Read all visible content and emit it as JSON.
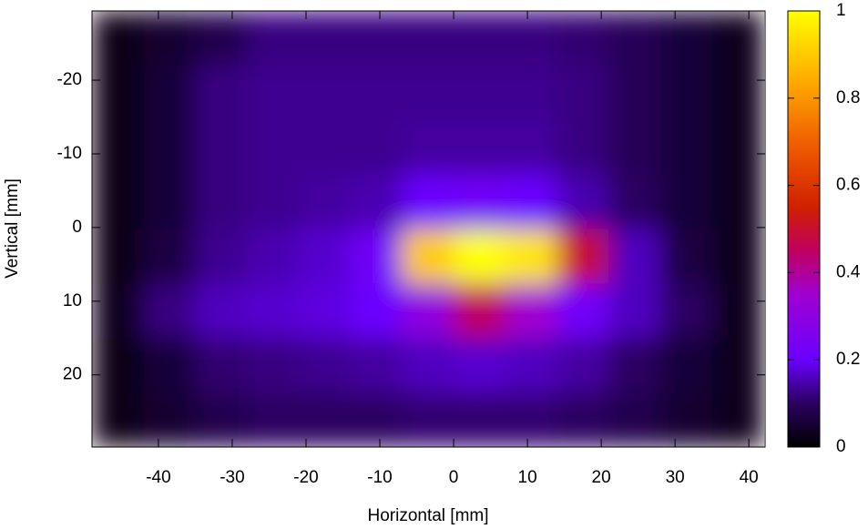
{
  "chart_data": {
    "type": "heatmap",
    "xlabel": "Horizontal [mm]",
    "ylabel": "Vertical [mm]",
    "x": [
      -49,
      -42,
      -35,
      -28,
      -21,
      -14,
      -7,
      0,
      7,
      14,
      21,
      28,
      35,
      42
    ],
    "y": [
      -29.4,
      -22,
      -14.6,
      -7.2,
      0.2,
      7.6,
      15,
      22.4,
      29.8
    ],
    "z": [
      [
        0.02,
        0.05,
        0.08,
        0.12,
        0.12,
        0.12,
        0.12,
        0.12,
        0.12,
        0.11,
        0.09,
        0.06,
        0.03
      ],
      [
        0.02,
        0.06,
        0.12,
        0.13,
        0.13,
        0.13,
        0.13,
        0.13,
        0.13,
        0.12,
        0.09,
        0.06,
        0.03
      ],
      [
        0.02,
        0.06,
        0.12,
        0.13,
        0.13,
        0.13,
        0.14,
        0.14,
        0.14,
        0.12,
        0.09,
        0.06,
        0.03
      ],
      [
        0.02,
        0.06,
        0.12,
        0.13,
        0.14,
        0.15,
        0.2,
        0.22,
        0.2,
        0.15,
        0.1,
        0.06,
        0.03
      ],
      [
        0.02,
        0.07,
        0.13,
        0.15,
        0.17,
        0.22,
        0.9,
        1,
        0.95,
        0.5,
        0.16,
        0.07,
        0.03
      ],
      [
        0.03,
        0.12,
        0.16,
        0.17,
        0.18,
        0.2,
        0.3,
        0.45,
        0.35,
        0.22,
        0.16,
        0.1,
        0.03
      ],
      [
        0.02,
        0.06,
        0.11,
        0.12,
        0.13,
        0.14,
        0.16,
        0.17,
        0.16,
        0.14,
        0.1,
        0.06,
        0.03
      ],
      [
        0.02,
        0.05,
        0.08,
        0.1,
        0.1,
        0.1,
        0.11,
        0.11,
        0.11,
        0.1,
        0.08,
        0.05,
        0.03
      ]
    ],
    "xlim": [
      -49,
      42.2
    ],
    "ylim": [
      -29.4,
      29.8
    ],
    "y_reversed": true,
    "xticks": [
      -40,
      -30,
      -20,
      -10,
      0,
      10,
      20,
      30,
      40
    ],
    "yticks": [
      -20,
      -10,
      0,
      10,
      20
    ],
    "zlim": [
      0,
      1
    ],
    "zticks": [
      0,
      0.2,
      0.4,
      0.6,
      0.8,
      1
    ],
    "colormap": [
      {
        "value": 0,
        "color": "#000000"
      },
      {
        "value": 0.1,
        "color": "#2a0060"
      },
      {
        "value": 0.2,
        "color": "#6a00ff"
      },
      {
        "value": 0.35,
        "color": "#a000d0"
      },
      {
        "value": 0.45,
        "color": "#c00060"
      },
      {
        "value": 0.55,
        "color": "#d02000"
      },
      {
        "value": 0.7,
        "color": "#f06000"
      },
      {
        "value": 0.85,
        "color": "#ffb000"
      },
      {
        "value": 1,
        "color": "#ffff00"
      }
    ]
  }
}
